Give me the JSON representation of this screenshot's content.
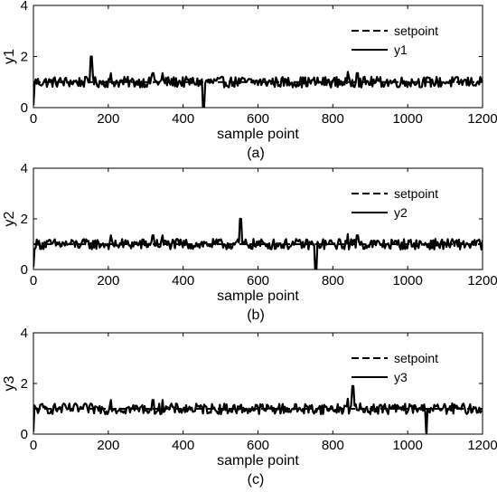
{
  "chart_data": [
    {
      "type": "line",
      "caption": "(a)",
      "xlabel": "sample point",
      "ylabel": "y1",
      "xlim": [
        0,
        1200
      ],
      "ylim": [
        0,
        4
      ],
      "xticks": [
        "0",
        "200",
        "400",
        "600",
        "800",
        "1000",
        "1200"
      ],
      "yticks": [
        "0",
        "2",
        "4"
      ],
      "grid": false,
      "legend_position": "top-right",
      "series": [
        {
          "name": "setpoint",
          "style": "dashed",
          "color": "#000000",
          "x": [
            0,
            1200
          ],
          "y": [
            1,
            1
          ]
        },
        {
          "name": "y1",
          "style": "solid",
          "color": "#000000",
          "x": [
            0,
            150,
            155,
            160,
            207,
            320,
            345,
            450,
            455,
            460,
            840,
            865,
            1200
          ],
          "y": [
            1,
            1,
            2.0,
            1,
            1.35,
            1.35,
            1.35,
            1,
            0.0,
            1,
            1.4,
            1.35,
            1
          ]
        }
      ]
    },
    {
      "type": "line",
      "caption": "(b)",
      "xlabel": "sample point",
      "ylabel": "y2",
      "xlim": [
        0,
        1200
      ],
      "ylim": [
        0,
        4
      ],
      "xticks": [
        "0",
        "200",
        "400",
        "600",
        "800",
        "1000",
        "1200"
      ],
      "yticks": [
        "0",
        "2",
        "4"
      ],
      "grid": false,
      "legend_position": "top-right",
      "series": [
        {
          "name": "setpoint",
          "style": "dashed",
          "color": "#000000",
          "x": [
            0,
            1200
          ],
          "y": [
            1,
            1
          ]
        },
        {
          "name": "y2",
          "style": "solid",
          "color": "#000000",
          "x": [
            0,
            207,
            320,
            345,
            548,
            553,
            558,
            750,
            755,
            760,
            840,
            865,
            1200
          ],
          "y": [
            1,
            1.35,
            1.35,
            1.35,
            1,
            2.0,
            1,
            1,
            -0.1,
            1,
            1.4,
            1.35,
            1
          ]
        }
      ]
    },
    {
      "type": "line",
      "caption": "(c)",
      "xlabel": "sample point",
      "ylabel": "y3",
      "xlim": [
        0,
        1200
      ],
      "ylim": [
        0,
        4
      ],
      "xticks": [
        "0",
        "200",
        "400",
        "600",
        "800",
        "1000",
        "1200"
      ],
      "yticks": [
        "0",
        "2",
        "4"
      ],
      "grid": false,
      "legend_position": "top-right",
      "series": [
        {
          "name": "setpoint",
          "style": "dashed",
          "color": "#000000",
          "x": [
            0,
            1200
          ],
          "y": [
            1,
            1
          ]
        },
        {
          "name": "y3",
          "style": "solid",
          "color": "#000000",
          "x": [
            0,
            207,
            320,
            345,
            840,
            848,
            853,
            858,
            1045,
            1050,
            1055,
            1200
          ],
          "y": [
            1,
            1.35,
            1.35,
            1.35,
            1.4,
            1,
            1.9,
            1,
            1,
            -0.1,
            1,
            1
          ]
        }
      ]
    }
  ]
}
